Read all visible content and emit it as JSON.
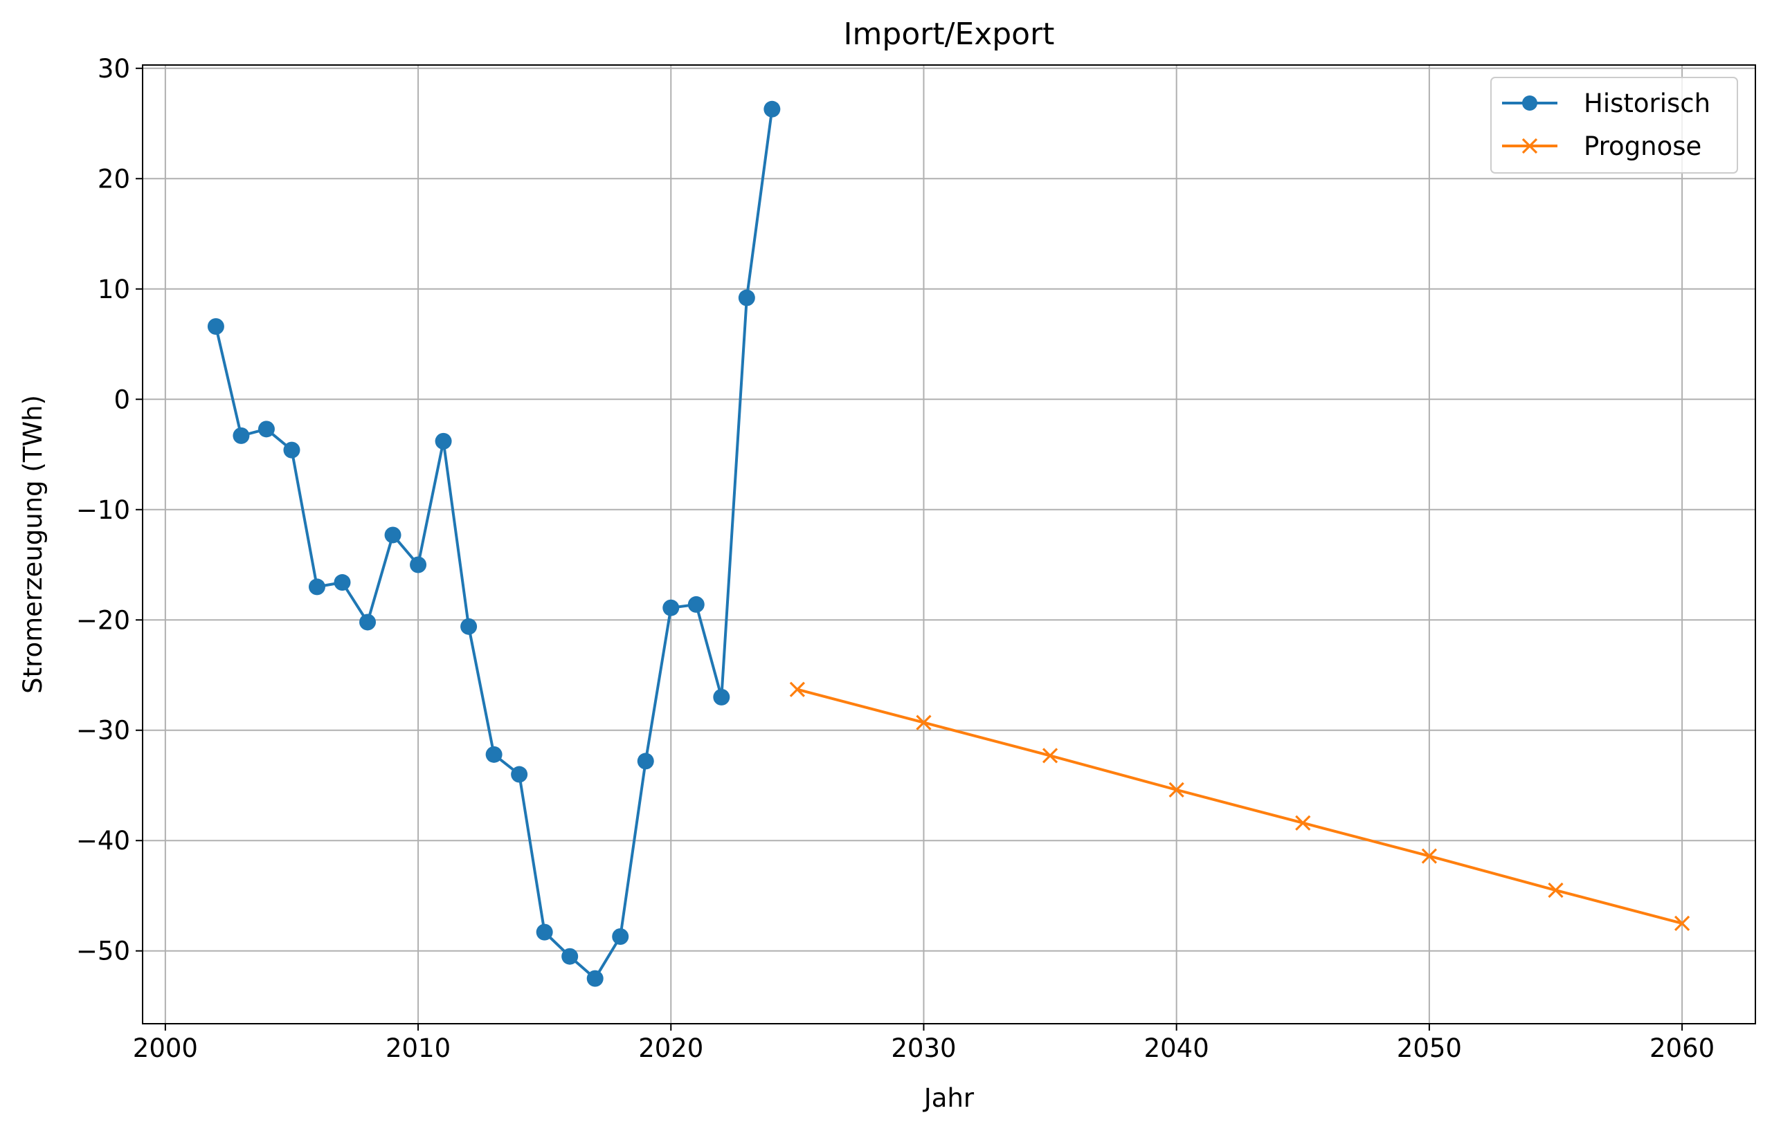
{
  "chart_data": {
    "type": "line",
    "title": "Import/Export",
    "xlabel": "Jahr",
    "ylabel": "Stromerzeugung (TWh)",
    "xlim": [
      1999.1,
      2062.9
    ],
    "ylim": [
      -56.6,
      30.3
    ],
    "xticks": [
      2000,
      2010,
      2020,
      2030,
      2040,
      2050,
      2060
    ],
    "yticks": [
      30,
      20,
      10,
      0,
      -10,
      -20,
      -30,
      -40,
      -50
    ],
    "xtick_labels": [
      "2000",
      "2010",
      "2020",
      "2030",
      "2040",
      "2050",
      "2060"
    ],
    "ytick_labels": [
      "30",
      "20",
      "10",
      "0",
      "−10",
      "−20",
      "−30",
      "−40",
      "−50"
    ],
    "grid": true,
    "legend_position": "top-right",
    "series": [
      {
        "name": "Historisch",
        "color": "#1f77b4",
        "marker": "circle",
        "x": [
          2002,
          2003,
          2004,
          2005,
          2006,
          2007,
          2008,
          2009,
          2010,
          2011,
          2012,
          2013,
          2014,
          2015,
          2016,
          2017,
          2018,
          2019,
          2020,
          2021,
          2022,
          2023,
          2024
        ],
        "y": [
          6.6,
          -3.3,
          -2.7,
          -4.6,
          -17.0,
          -16.6,
          -20.2,
          -12.3,
          -15.0,
          -3.8,
          -20.6,
          -32.2,
          -34.0,
          -48.3,
          -50.5,
          -52.5,
          -48.7,
          -32.8,
          -18.9,
          -18.6,
          -27.0,
          9.2,
          26.3
        ]
      },
      {
        "name": "Prognose",
        "color": "#ff7f0e",
        "marker": "x",
        "x": [
          2025,
          2030,
          2035,
          2040,
          2045,
          2050,
          2055,
          2060
        ],
        "y": [
          -26.3,
          -29.3,
          -32.3,
          -35.4,
          -38.4,
          -41.4,
          -44.5,
          -47.5
        ]
      }
    ]
  }
}
